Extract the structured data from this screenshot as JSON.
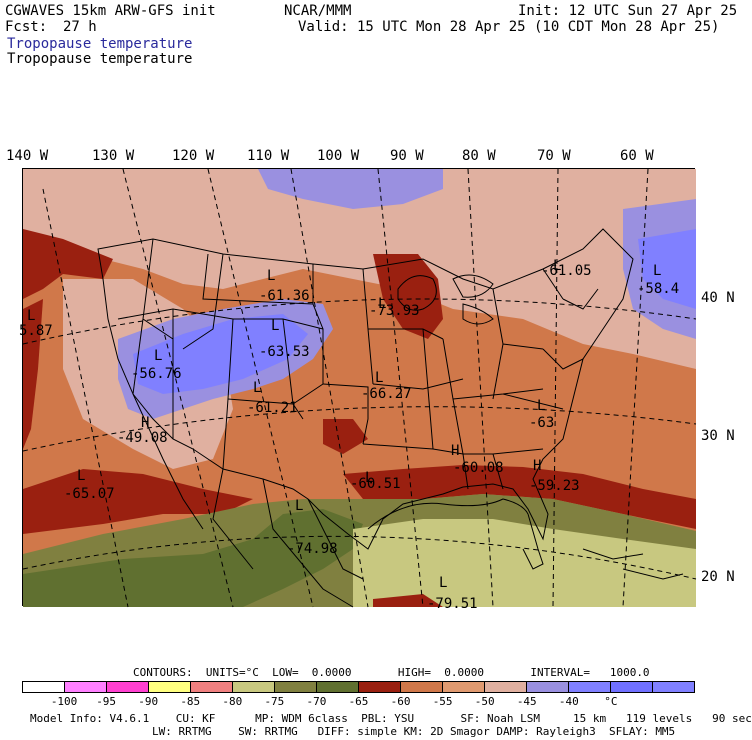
{
  "header": {
    "model": "CGWAVES 15km ARW-GFS init",
    "org": "NCAR/MMM",
    "init": "Init: 12 UTC Sun 27 Apr 25",
    "fcst_label": "Fcst:",
    "fcst_value": "27 h",
    "valid": "Valid: 15 UTC Mon 28 Apr 25 (10 CDT Mon 28 Apr 25)",
    "field_line_1": "Tropopause temperature",
    "field_line_2": "Tropopause temperature"
  },
  "map": {
    "lon_labels": [
      "140 W",
      "130 W",
      "120 W",
      "110 W",
      "100 W",
      "90 W",
      "80 W",
      "70 W",
      "60 W"
    ],
    "lat_labels": [
      "40 N",
      "30 N",
      "20 N"
    ],
    "field_labels": [
      {
        "letter": "L",
        "value": "5.87"
      },
      {
        "letter": "L",
        "value": "-61.36"
      },
      {
        "letter": "L",
        "value": "-73.93"
      },
      {
        "letter": "L",
        "value": "-61.05"
      },
      {
        "letter": "L",
        "value": "-58.4"
      },
      {
        "letter": "L",
        "value": "-63.53"
      },
      {
        "letter": "L",
        "value": "-56.76"
      },
      {
        "letter": "L",
        "value": "-61.21"
      },
      {
        "letter": "L",
        "value": "-66.27"
      },
      {
        "letter": "H",
        "value": "-49.08"
      },
      {
        "letter": "L",
        "value": "-63"
      },
      {
        "letter": "L",
        "value": "-65.07"
      },
      {
        "letter": "H",
        "value": "-60.08"
      },
      {
        "letter": "L",
        "value": "-60.51"
      },
      {
        "letter": "H",
        "value": "-59.23"
      },
      {
        "letter": "L",
        "value": "-74.98"
      },
      {
        "letter": "L",
        "value": "-79.51"
      }
    ]
  },
  "contours": {
    "text": "CONTOURS:  UNITS=°C  LOW=  0.0000       HIGH=  0.0000       INTERVAL=   1000.0"
  },
  "colorbar": {
    "colors": [
      "#ffffff",
      "#ff80ff",
      "#ff40d0",
      "#ffff80",
      "#f08080",
      "#c8c880",
      "#808040",
      "#607030",
      "#9a2010",
      "#d0784a",
      "#e09a70",
      "#e0b0a0",
      "#9a90e0",
      "#8080ff",
      "#7070ff",
      "#8080ff"
    ],
    "ticks": [
      "-100",
      "-95",
      "-90",
      "-85",
      "-80",
      "-75",
      "-70",
      "-65",
      "-60",
      "-55",
      "-50",
      "-45",
      "-40",
      "°C"
    ]
  },
  "footer": {
    "line1": "Model Info: V4.6.1    CU: KF      MP: WDM 6class  PBL: YSU       SF: Noah LSM     15 km   119 levels   90 sec",
    "line2": "LW: RRTMG    SW: RRTMG   DIFF: simple KM: 2D Smagor DAMP: Rayleigh3  SFLAY: MM5"
  }
}
